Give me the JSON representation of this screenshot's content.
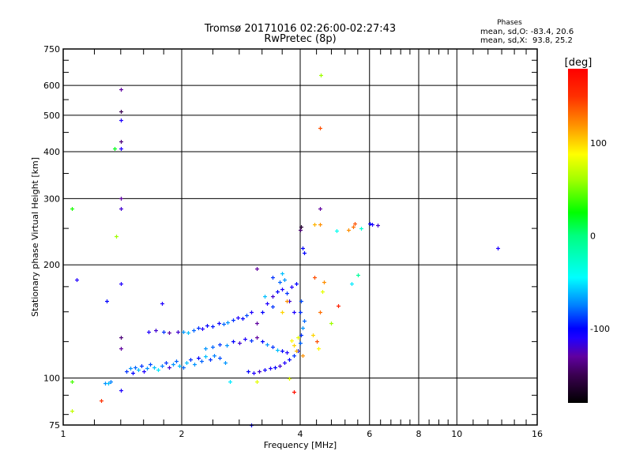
{
  "chart_data": {
    "type": "scatter",
    "title": "Tromsø 20171016 02:26:00-02:27:43",
    "subtitle": "RwPretec (8p)",
    "xlabel": "Frequency [MHz]",
    "ylabel": "Stationary phase Virtual Height [km]",
    "xscale": "log",
    "yscale": "log",
    "xlim": [
      1,
      16
    ],
    "ylim": [
      75,
      750
    ],
    "xticks": [
      1,
      2,
      4,
      6,
      8,
      10,
      16
    ],
    "xtick_labels": [
      "1",
      "2",
      "4",
      "6",
      "8",
      "10",
      "16"
    ],
    "yticks": [
      75,
      100,
      200,
      300,
      400,
      500,
      600,
      750
    ],
    "ytick_labels": [
      "75",
      "100",
      "200",
      "300",
      "400",
      "500",
      "600",
      "750"
    ],
    "grid": true,
    "phases": {
      "title": "Phases",
      "o_line": "mean, sd,O: -83.4, 20.6",
      "x_line": "mean, sd,X:  93.8, 25.2"
    },
    "colorbar": {
      "label": "[deg]",
      "range": [
        -180,
        180
      ],
      "ticks": [
        100,
        0,
        -100
      ],
      "tick_labels": [
        "100",
        "0",
        "-100"
      ]
    },
    "point_format": [
      "frequency_MHz",
      "height_km",
      "phase_deg"
    ],
    "points": [
      [
        1.28,
        97,
        -70
      ],
      [
        1.3,
        97,
        -60
      ],
      [
        1.32,
        98,
        -75
      ],
      [
        1.45,
        104,
        -90
      ],
      [
        1.48,
        106,
        -70
      ],
      [
        1.5,
        103,
        -100
      ],
      [
        1.52,
        107,
        -80
      ],
      [
        1.55,
        105,
        -60
      ],
      [
        1.58,
        108,
        -90
      ],
      [
        1.6,
        104,
        -110
      ],
      [
        1.63,
        106,
        -70
      ],
      [
        1.66,
        109,
        -85
      ],
      [
        1.7,
        107,
        -60
      ],
      [
        1.74,
        105,
        -50
      ],
      [
        1.78,
        108,
        -75
      ],
      [
        1.82,
        110,
        -90
      ],
      [
        1.86,
        107,
        -120
      ],
      [
        1.9,
        109,
        -70
      ],
      [
        1.94,
        111,
        -80
      ],
      [
        1.97,
        108,
        -60
      ],
      [
        2.02,
        107,
        -80
      ],
      [
        2.06,
        110,
        -60
      ],
      [
        2.1,
        112,
        -90
      ],
      [
        2.15,
        109,
        -70
      ],
      [
        2.2,
        113,
        -100
      ],
      [
        2.25,
        111,
        -80
      ],
      [
        2.3,
        114,
        -60
      ],
      [
        2.36,
        112,
        -90
      ],
      [
        2.42,
        115,
        -75
      ],
      [
        2.5,
        113,
        -85
      ],
      [
        2.58,
        110,
        -70
      ],
      [
        2.02,
        133,
        -70
      ],
      [
        2.08,
        132,
        -60
      ],
      [
        2.14,
        134,
        -80
      ],
      [
        2.2,
        136,
        -90
      ],
      [
        2.26,
        135,
        -110
      ],
      [
        2.32,
        138,
        -100
      ],
      [
        2.4,
        137,
        -95
      ],
      [
        2.48,
        140,
        -105
      ],
      [
        2.56,
        139,
        -80
      ],
      [
        2.62,
        141,
        -70
      ],
      [
        2.7,
        143,
        -90
      ],
      [
        2.78,
        145,
        -110
      ],
      [
        2.85,
        144,
        -100
      ],
      [
        2.92,
        147,
        -85
      ],
      [
        1.65,
        133,
        -110
      ],
      [
        1.72,
        134,
        -120
      ],
      [
        1.8,
        133,
        -90
      ],
      [
        1.86,
        132,
        -130
      ],
      [
        2.3,
        120,
        -70
      ],
      [
        2.4,
        121,
        -80
      ],
      [
        2.5,
        123,
        -90
      ],
      [
        2.6,
        122,
        -70
      ],
      [
        2.7,
        125,
        -100
      ],
      [
        2.8,
        124,
        -120
      ],
      [
        2.9,
        127,
        -110
      ],
      [
        3.0,
        126,
        -90
      ],
      [
        3.1,
        128,
        -130
      ],
      [
        3.2,
        125,
        -100
      ],
      [
        3.3,
        123,
        -70
      ],
      [
        3.4,
        121,
        -90
      ],
      [
        3.5,
        119,
        -60
      ],
      [
        3.6,
        118,
        -100
      ],
      [
        3.7,
        117,
        -110
      ],
      [
        2.95,
        104,
        -100
      ],
      [
        3.05,
        103,
        -110
      ],
      [
        3.15,
        104,
        -120
      ],
      [
        3.25,
        105,
        -105
      ],
      [
        3.35,
        106,
        -110
      ],
      [
        3.45,
        107,
        -100
      ],
      [
        3.55,
        108,
        -120
      ],
      [
        3.65,
        110,
        -110
      ],
      [
        3.75,
        112,
        -100
      ],
      [
        3.85,
        115,
        -90
      ],
      [
        3.95,
        118,
        -100
      ],
      [
        4.0,
        124,
        -80
      ],
      [
        4.02,
        130,
        -90
      ],
      [
        4.05,
        136,
        -70
      ],
      [
        4.1,
        142,
        -80
      ],
      [
        4.0,
        150,
        -90
      ],
      [
        4.02,
        160,
        -85
      ],
      [
        3.2,
        150,
        -100
      ],
      [
        3.3,
        158,
        -110
      ],
      [
        3.4,
        165,
        -120
      ],
      [
        3.5,
        170,
        -100
      ],
      [
        3.6,
        172,
        -110
      ],
      [
        3.7,
        168,
        -90
      ],
      [
        3.8,
        175,
        -110
      ],
      [
        3.9,
        178,
        -100
      ],
      [
        3.55,
        180,
        -80
      ],
      [
        3.65,
        183,
        -70
      ],
      [
        3.25,
        165,
        -60
      ],
      [
        3.4,
        155,
        -90
      ],
      [
        3.75,
        160,
        -120
      ],
      [
        3.85,
        150,
        -110
      ],
      [
        3.1,
        140,
        -130
      ],
      [
        3.0,
        150,
        -110
      ],
      [
        3.8,
        126,
        90
      ],
      [
        3.85,
        122,
        100
      ],
      [
        3.9,
        118,
        110
      ],
      [
        3.95,
        128,
        80
      ],
      [
        4.05,
        115,
        120
      ],
      [
        4.3,
        130,
        100
      ],
      [
        4.4,
        125,
        140
      ],
      [
        4.45,
        120,
        90
      ],
      [
        4.5,
        150,
        130
      ],
      [
        4.6,
        180,
        120
      ],
      [
        4.55,
        170,
        80
      ],
      [
        4.35,
        185,
        140
      ],
      [
        3.7,
        160,
        120
      ],
      [
        3.6,
        150,
        100
      ],
      [
        5.0,
        156,
        160
      ],
      [
        4.8,
        140,
        60
      ],
      [
        3.75,
        100,
        80
      ],
      [
        3.85,
        92,
        170
      ],
      [
        1.05,
        98,
        40
      ],
      [
        1.05,
        82,
        70
      ],
      [
        1.25,
        87,
        150
      ],
      [
        1.08,
        183,
        -110
      ],
      [
        1.29,
        160,
        -100
      ],
      [
        1.4,
        178,
        -110
      ],
      [
        1.4,
        128,
        -140
      ],
      [
        1.4,
        120,
        -130
      ],
      [
        1.4,
        93,
        -110
      ],
      [
        1.4,
        587,
        -130
      ],
      [
        1.4,
        512,
        -150
      ],
      [
        1.4,
        485,
        -110
      ],
      [
        1.4,
        425,
        -140
      ],
      [
        1.4,
        408,
        -110
      ],
      [
        1.35,
        408,
        20
      ],
      [
        1.4,
        300,
        -130
      ],
      [
        1.4,
        282,
        -120
      ],
      [
        1.05,
        282,
        30
      ],
      [
        1.36,
        238,
        60
      ],
      [
        1.78,
        158,
        -110
      ],
      [
        1.95,
        133,
        -120
      ],
      [
        3.0,
        75,
        -100
      ],
      [
        2.65,
        98,
        -50
      ],
      [
        3.1,
        98,
        80
      ],
      [
        4.0,
        248,
        -140
      ],
      [
        4.02,
        252,
        -160
      ],
      [
        4.05,
        222,
        -100
      ],
      [
        4.1,
        215,
        -100
      ],
      [
        4.35,
        256,
        110
      ],
      [
        4.5,
        256,
        120
      ],
      [
        4.5,
        282,
        -130
      ],
      [
        4.5,
        462,
        140
      ],
      [
        4.52,
        640,
        60
      ],
      [
        4.95,
        246,
        -40
      ],
      [
        5.3,
        248,
        120
      ],
      [
        5.45,
        252,
        130
      ],
      [
        5.5,
        258,
        140
      ],
      [
        5.7,
        250,
        -30
      ],
      [
        6.0,
        258,
        -100
      ],
      [
        6.1,
        256,
        -110
      ],
      [
        6.3,
        255,
        -120
      ],
      [
        12.7,
        222,
        -110
      ],
      [
        5.6,
        188,
        -10
      ],
      [
        5.4,
        178,
        -50
      ],
      [
        3.6,
        190,
        -60
      ],
      [
        3.1,
        195,
        -130
      ],
      [
        3.4,
        185,
        -90
      ]
    ]
  }
}
